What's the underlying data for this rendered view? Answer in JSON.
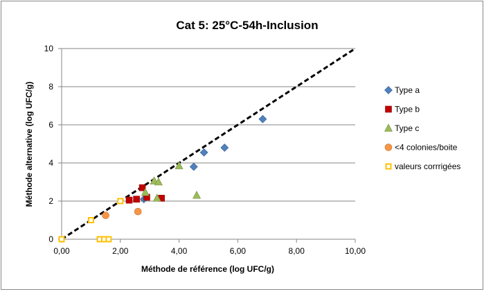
{
  "chart_data": {
    "type": "scatter",
    "title": "Cat 5: 25°C-54h-Inclusion",
    "xlabel": "Méthode de référence (log UFC/g)",
    "ylabel": "Méthode alternative (log UFC/g)",
    "xlim": [
      0,
      10
    ],
    "ylim": [
      0,
      10
    ],
    "x_ticks": [
      "0,00",
      "2,00",
      "4,00",
      "6,00",
      "8,00",
      "10,00"
    ],
    "y_ticks": [
      "0",
      "2",
      "4",
      "6",
      "8",
      "10"
    ],
    "grid": "horizontal major",
    "legend_position": "right",
    "reference_line": {
      "style": "dashed",
      "color": "#000000",
      "points": [
        [
          0,
          0
        ],
        [
          10,
          10
        ]
      ]
    },
    "series": [
      {
        "name": "Type a",
        "marker": "diamond",
        "color": "#4f81bd",
        "points": [
          [
            2.8,
            2.1
          ],
          [
            4.5,
            3.8
          ],
          [
            4.85,
            4.55
          ],
          [
            5.55,
            4.8
          ],
          [
            6.85,
            6.3
          ]
        ]
      },
      {
        "name": "Type b",
        "marker": "square",
        "color": "#c00000",
        "points": [
          [
            2.3,
            2.05
          ],
          [
            2.55,
            2.1
          ],
          [
            2.75,
            2.7
          ],
          [
            2.9,
            2.2
          ],
          [
            3.4,
            2.15
          ]
        ]
      },
      {
        "name": "Type c",
        "marker": "triangle",
        "color": "#9bbb59",
        "points": [
          [
            2.85,
            2.45
          ],
          [
            3.15,
            3.05
          ],
          [
            3.3,
            3.0
          ],
          [
            3.25,
            2.15
          ],
          [
            4.0,
            3.85
          ],
          [
            4.6,
            2.3
          ]
        ]
      },
      {
        "name": "<4 colonies/boite",
        "marker": "circle",
        "color": "#f79646",
        "points": [
          [
            1.5,
            1.25
          ],
          [
            2.6,
            1.45
          ]
        ]
      },
      {
        "name": "valeurs corrrigées",
        "marker": "hollow-square",
        "color": "#ffc000",
        "points": [
          [
            0.0,
            0.0
          ],
          [
            1.0,
            1.0
          ],
          [
            2.0,
            2.0
          ],
          [
            1.3,
            0.0
          ],
          [
            1.45,
            0.0
          ],
          [
            1.6,
            0.0
          ]
        ]
      }
    ]
  }
}
